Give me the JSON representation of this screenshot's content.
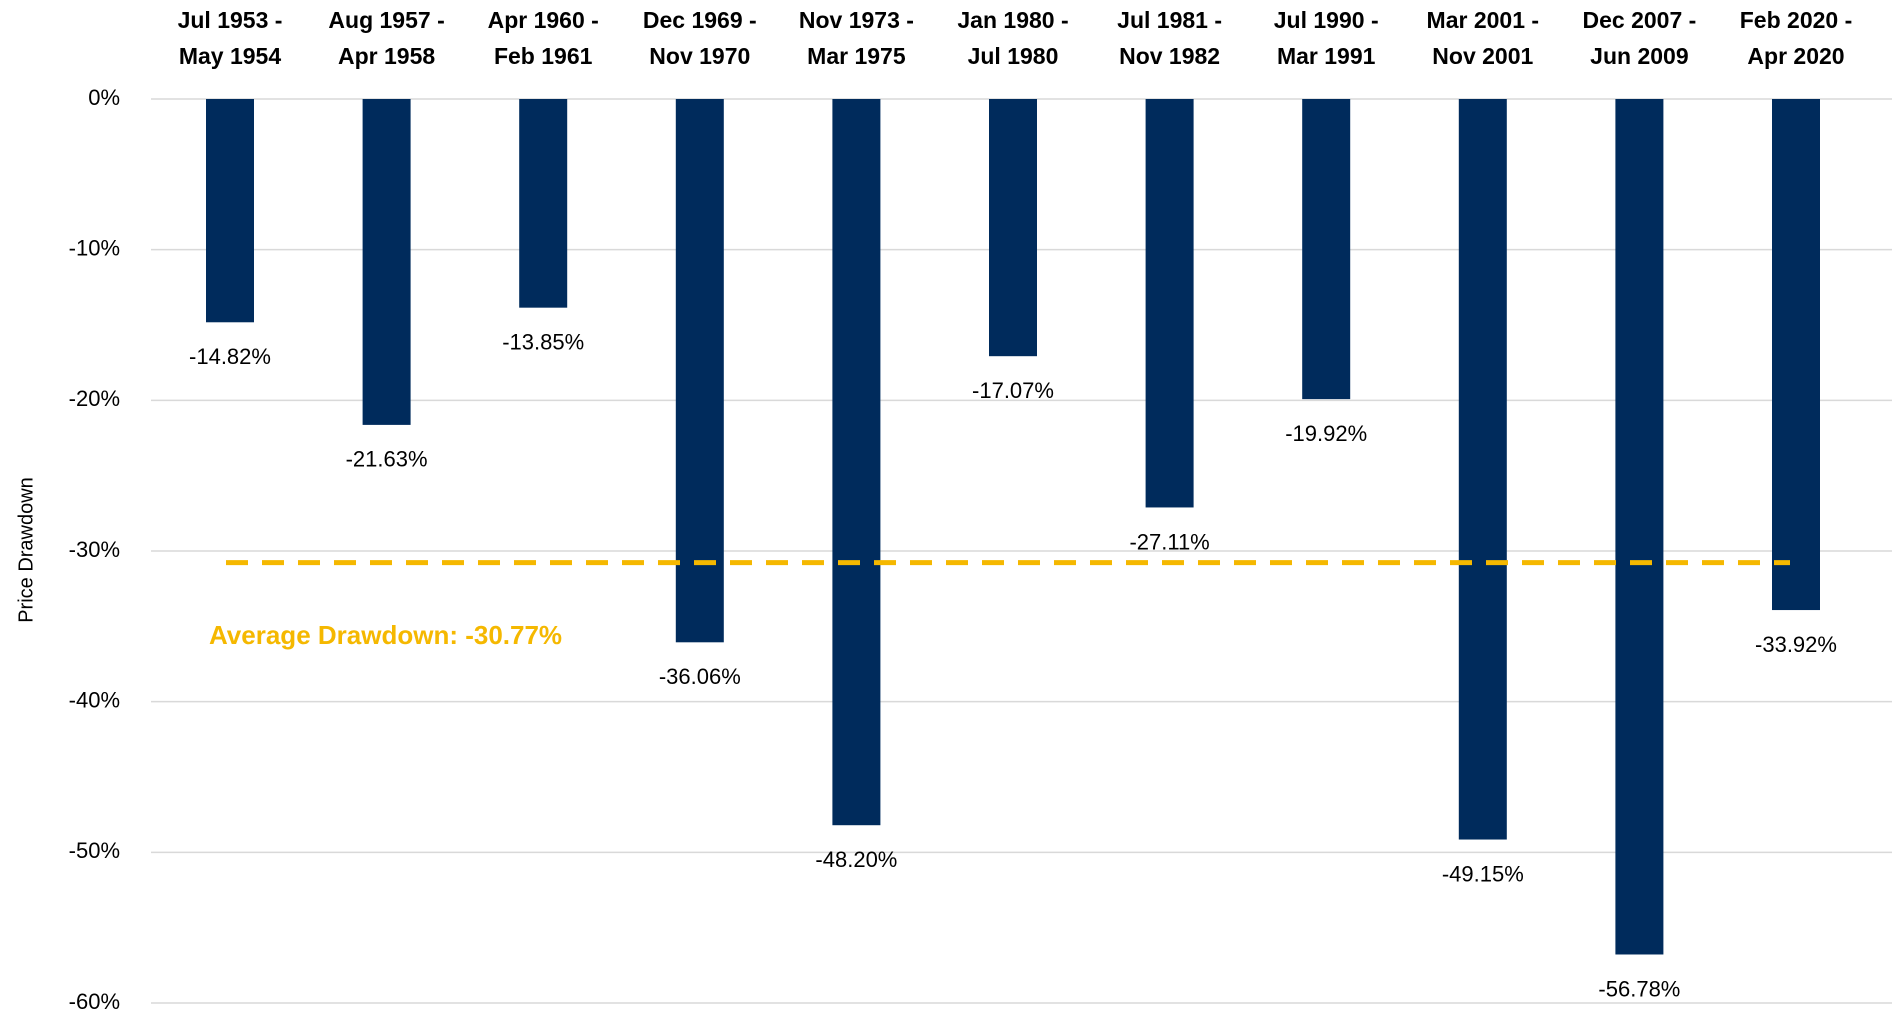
{
  "chart_data": {
    "type": "bar",
    "categories": [
      [
        "Jul 1953 -",
        "May 1954"
      ],
      [
        "Aug 1957 -",
        "Apr 1958"
      ],
      [
        "Apr 1960 -",
        "Feb 1961"
      ],
      [
        "Dec 1969 -",
        "Nov 1970"
      ],
      [
        "Nov 1973 -",
        "Mar 1975"
      ],
      [
        "Jan 1980 -",
        "Jul 1980"
      ],
      [
        "Jul 1981 -",
        "Nov 1982"
      ],
      [
        "Jul 1990 -",
        "Mar 1991"
      ],
      [
        "Mar 2001 -",
        "Nov 2001"
      ],
      [
        "Dec 2007 -",
        "Jun 2009"
      ],
      [
        "Feb 2020 -",
        "Apr 2020"
      ]
    ],
    "values": [
      -14.82,
      -21.63,
      -13.85,
      -36.06,
      -48.2,
      -17.07,
      -27.11,
      -19.92,
      -49.15,
      -56.78,
      -33.92
    ],
    "value_labels": [
      "-14.82%",
      "-21.63%",
      "-13.85%",
      "-36.06%",
      "-48.20%",
      "-17.07%",
      "-27.11%",
      "-19.92%",
      "-49.15%",
      "-56.78%",
      "-33.92%"
    ],
    "color": "#002b5c",
    "ylabel": "Price Drawdown",
    "ylim": [
      -60,
      0
    ],
    "yticks": [
      {
        "value": 0,
        "label": "0%"
      },
      {
        "value": -10,
        "label": "-10%"
      },
      {
        "value": -20,
        "label": "-20%"
      },
      {
        "value": -30,
        "label": "-30%"
      },
      {
        "value": -40,
        "label": "-40%"
      },
      {
        "value": -50,
        "label": "-50%"
      },
      {
        "value": -60,
        "label": "-60%"
      }
    ],
    "grid": true,
    "average": {
      "value": -30.77,
      "label": "Average Drawdown: -30.77%",
      "color": "#f5b800"
    }
  }
}
